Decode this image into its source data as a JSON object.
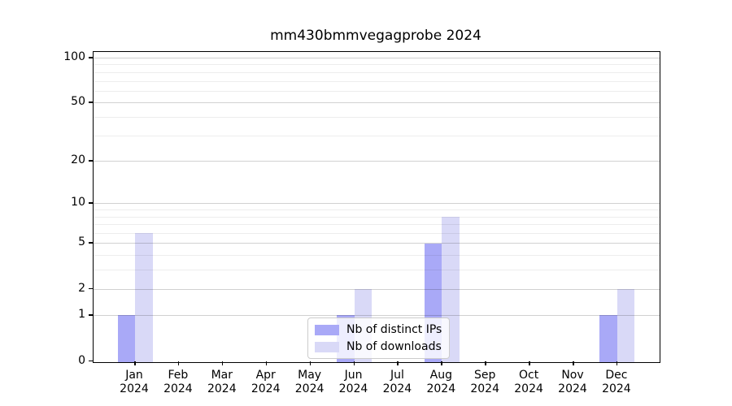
{
  "chart_data": {
    "type": "bar",
    "title": "mm430bmmvegagprobe 2024",
    "categories": [
      "Jan 2024",
      "Feb 2024",
      "Mar 2024",
      "Apr 2024",
      "May 2024",
      "Jun 2024",
      "Jul 2024",
      "Aug 2024",
      "Sep 2024",
      "Oct 2024",
      "Nov 2024",
      "Dec 2024"
    ],
    "x_tick_lines": [
      [
        "Jan",
        "2024"
      ],
      [
        "Feb",
        "2024"
      ],
      [
        "Mar",
        "2024"
      ],
      [
        "Apr",
        "2024"
      ],
      [
        "May",
        "2024"
      ],
      [
        "Jun",
        "2024"
      ],
      [
        "Jul",
        "2024"
      ],
      [
        "Aug",
        "2024"
      ],
      [
        "Sep",
        "2024"
      ],
      [
        "Oct",
        "2024"
      ],
      [
        "Nov",
        "2024"
      ],
      [
        "Dec",
        "2024"
      ]
    ],
    "series": [
      {
        "name": "Nb of distinct IPs",
        "color": "#a9a9f7",
        "values": [
          1,
          0,
          0,
          0,
          0,
          1,
          0,
          5,
          0,
          0,
          0,
          1
        ]
      },
      {
        "name": "Nb of downloads",
        "color": "#d9d9f7",
        "values": [
          6,
          0,
          0,
          0,
          0,
          2,
          0,
          8,
          0,
          0,
          0,
          2
        ]
      }
    ],
    "yscale": "log1p",
    "ylim": [
      0,
      110
    ],
    "yticks": [
      0,
      1,
      2,
      5,
      10,
      20,
      50,
      100
    ],
    "minor_yticks": [
      3,
      4,
      6,
      7,
      8,
      9,
      30,
      40,
      60,
      70,
      80,
      90
    ],
    "grid": "horizontal",
    "legend_position": "lower center inside"
  }
}
